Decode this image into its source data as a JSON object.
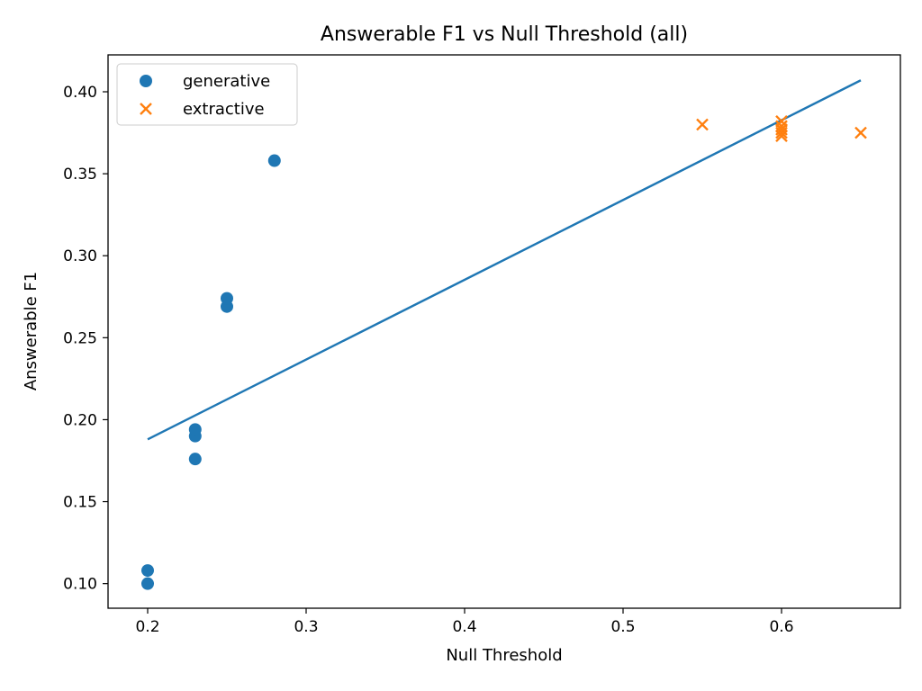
{
  "chart_data": {
    "type": "scatter",
    "title": "Answerable F1 vs Null Threshold (all)",
    "xlabel": "Null Threshold",
    "ylabel": "Answerable F1",
    "xlim": [
      0.175,
      0.675
    ],
    "ylim": [
      0.085,
      0.4225
    ],
    "xticks": [
      0.2,
      0.3,
      0.4,
      0.5,
      0.6
    ],
    "xtick_labels": [
      "0.2",
      "0.3",
      "0.4",
      "0.5",
      "0.6"
    ],
    "yticks": [
      0.1,
      0.15,
      0.2,
      0.25,
      0.3,
      0.35,
      0.4
    ],
    "ytick_labels": [
      "0.10",
      "0.15",
      "0.20",
      "0.25",
      "0.30",
      "0.35",
      "0.40"
    ],
    "grid": false,
    "legend_position": "top-left",
    "series": [
      {
        "name": "generative",
        "marker": "circle",
        "color": "#1f77b4",
        "points": [
          {
            "x": 0.2,
            "y": 0.1
          },
          {
            "x": 0.2,
            "y": 0.108
          },
          {
            "x": 0.23,
            "y": 0.176
          },
          {
            "x": 0.23,
            "y": 0.19
          },
          {
            "x": 0.23,
            "y": 0.194
          },
          {
            "x": 0.25,
            "y": 0.269
          },
          {
            "x": 0.25,
            "y": 0.274
          },
          {
            "x": 0.28,
            "y": 0.358
          }
        ]
      },
      {
        "name": "extractive",
        "marker": "x",
        "color": "#ff7f0e",
        "points": [
          {
            "x": 0.55,
            "y": 0.38
          },
          {
            "x": 0.6,
            "y": 0.373
          },
          {
            "x": 0.6,
            "y": 0.375
          },
          {
            "x": 0.6,
            "y": 0.377
          },
          {
            "x": 0.6,
            "y": 0.379
          },
          {
            "x": 0.6,
            "y": 0.382
          },
          {
            "x": 0.65,
            "y": 0.375
          }
        ]
      }
    ],
    "fit_line": {
      "color": "#1f77b4",
      "x": [
        0.2,
        0.65
      ],
      "y": [
        0.188,
        0.407
      ]
    }
  }
}
